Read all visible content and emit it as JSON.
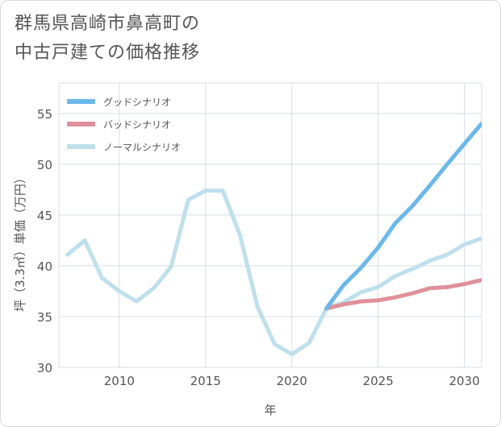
{
  "title": {
    "line1": "群馬県高崎市鼻高町の",
    "line2": "中古戸建ての価格推移"
  },
  "chart_data": {
    "type": "line",
    "title": "群馬県高崎市鼻高町の中古戸建ての価格推移",
    "xlabel": "年",
    "ylabel": "坪（3.3㎡）単価（万円）",
    "xlim": [
      2006.5,
      2031
    ],
    "ylim": [
      30,
      58
    ],
    "xticks": [
      2010,
      2015,
      2020,
      2025,
      2030
    ],
    "yticks": [
      30,
      35,
      40,
      45,
      50,
      55
    ],
    "grid": true,
    "legend_position": "top-left",
    "series": [
      {
        "name": "グッドシナリオ",
        "color": "#6bb8ea",
        "x": [
          2022,
          2023,
          2024,
          2025,
          2026,
          2027,
          2028,
          2029,
          2030,
          2031
        ],
        "y": [
          35.8,
          38.1,
          39.8,
          41.8,
          44.2,
          45.9,
          47.9,
          50.0,
          52.0,
          54.0
        ]
      },
      {
        "name": "バッドシナリオ",
        "color": "#e0909a",
        "x": [
          2022,
          2023,
          2024,
          2025,
          2026,
          2027,
          2028,
          2029,
          2030,
          2031
        ],
        "y": [
          35.8,
          36.2,
          36.5,
          36.6,
          36.9,
          37.3,
          37.8,
          37.9,
          38.2,
          38.6
        ]
      },
      {
        "name": "ノーマルシナリオ",
        "color": "#bfdfec",
        "x": [
          2007,
          2008,
          2009,
          2010,
          2011,
          2012,
          2013,
          2014,
          2015,
          2016,
          2017,
          2018,
          2019,
          2020,
          2021,
          2022,
          2023,
          2024,
          2025,
          2026,
          2027,
          2028,
          2029,
          2030,
          2031
        ],
        "y": [
          41.1,
          42.5,
          38.8,
          37.5,
          36.5,
          37.8,
          39.9,
          46.5,
          47.4,
          47.4,
          43.0,
          36.0,
          32.3,
          31.3,
          32.4,
          35.8,
          36.4,
          37.4,
          37.9,
          39.0,
          39.7,
          40.5,
          41.1,
          42.1,
          42.7
        ]
      }
    ]
  }
}
